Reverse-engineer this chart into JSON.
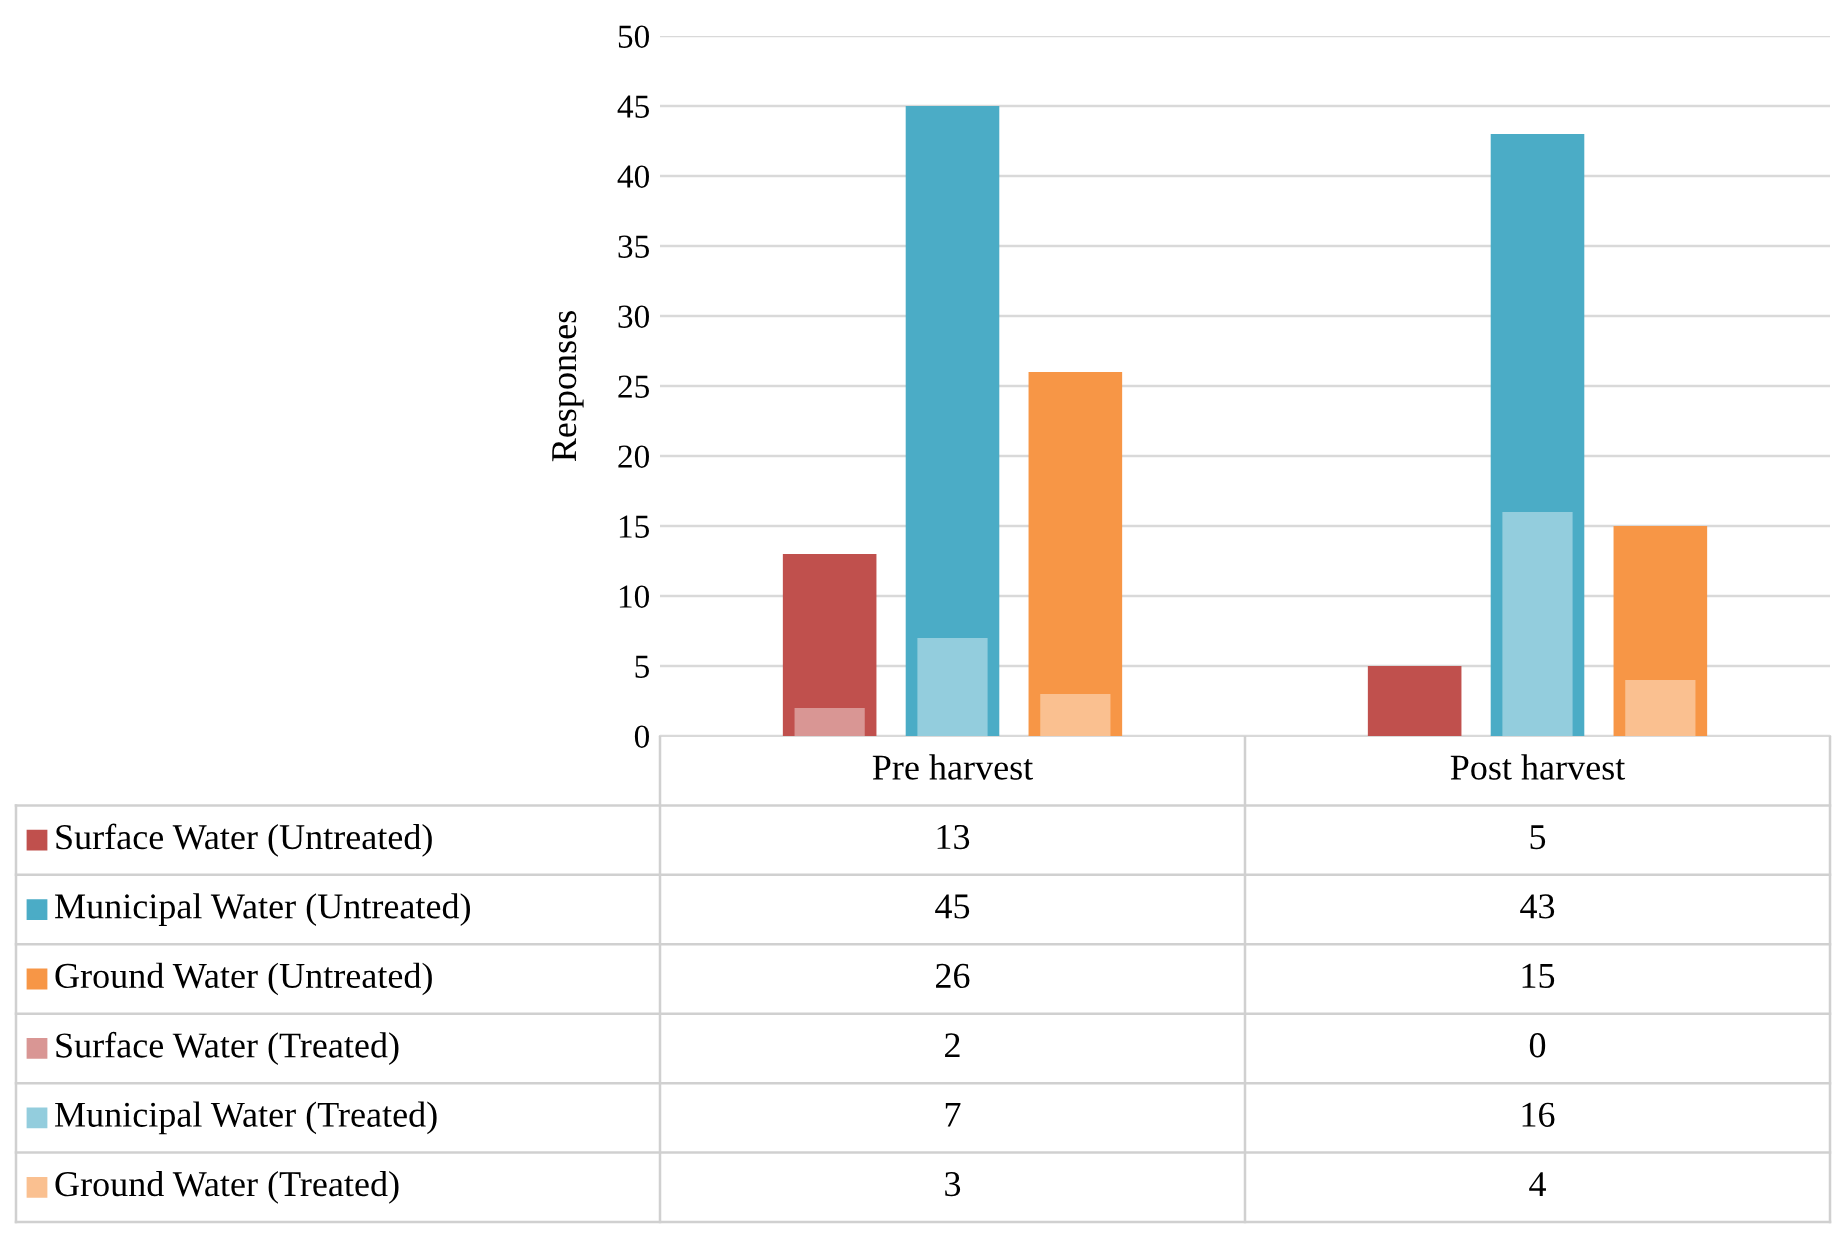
{
  "chart_data": {
    "type": "bar",
    "ylabel": "Responses",
    "categories": [
      "Pre harvest",
      "Post harvest"
    ],
    "series": [
      {
        "name": "Surface Water (Untreated)",
        "color": "#c0504d",
        "values": [
          13,
          5
        ]
      },
      {
        "name": "Municipal Water (Untreated)",
        "color": "#4bacc6",
        "values": [
          45,
          43
        ]
      },
      {
        "name": "Ground Water (Untreated)",
        "color": "#f79646",
        "values": [
          26,
          15
        ]
      },
      {
        "name": "Surface Water (Treated)",
        "color": "#d99694",
        "values": [
          2,
          0
        ]
      },
      {
        "name": "Municipal Water (Treated)",
        "color": "#93cddd",
        "values": [
          7,
          16
        ]
      },
      {
        "name": "Ground Water (Treated)",
        "color": "#fac090",
        "values": [
          3,
          4
        ]
      }
    ],
    "ylim": [
      0,
      50
    ],
    "yticks": [
      0,
      5,
      10,
      15,
      20,
      25,
      30,
      35,
      40,
      45,
      50
    ],
    "grid": "y",
    "legend": "bottom",
    "data_labels": true
  }
}
